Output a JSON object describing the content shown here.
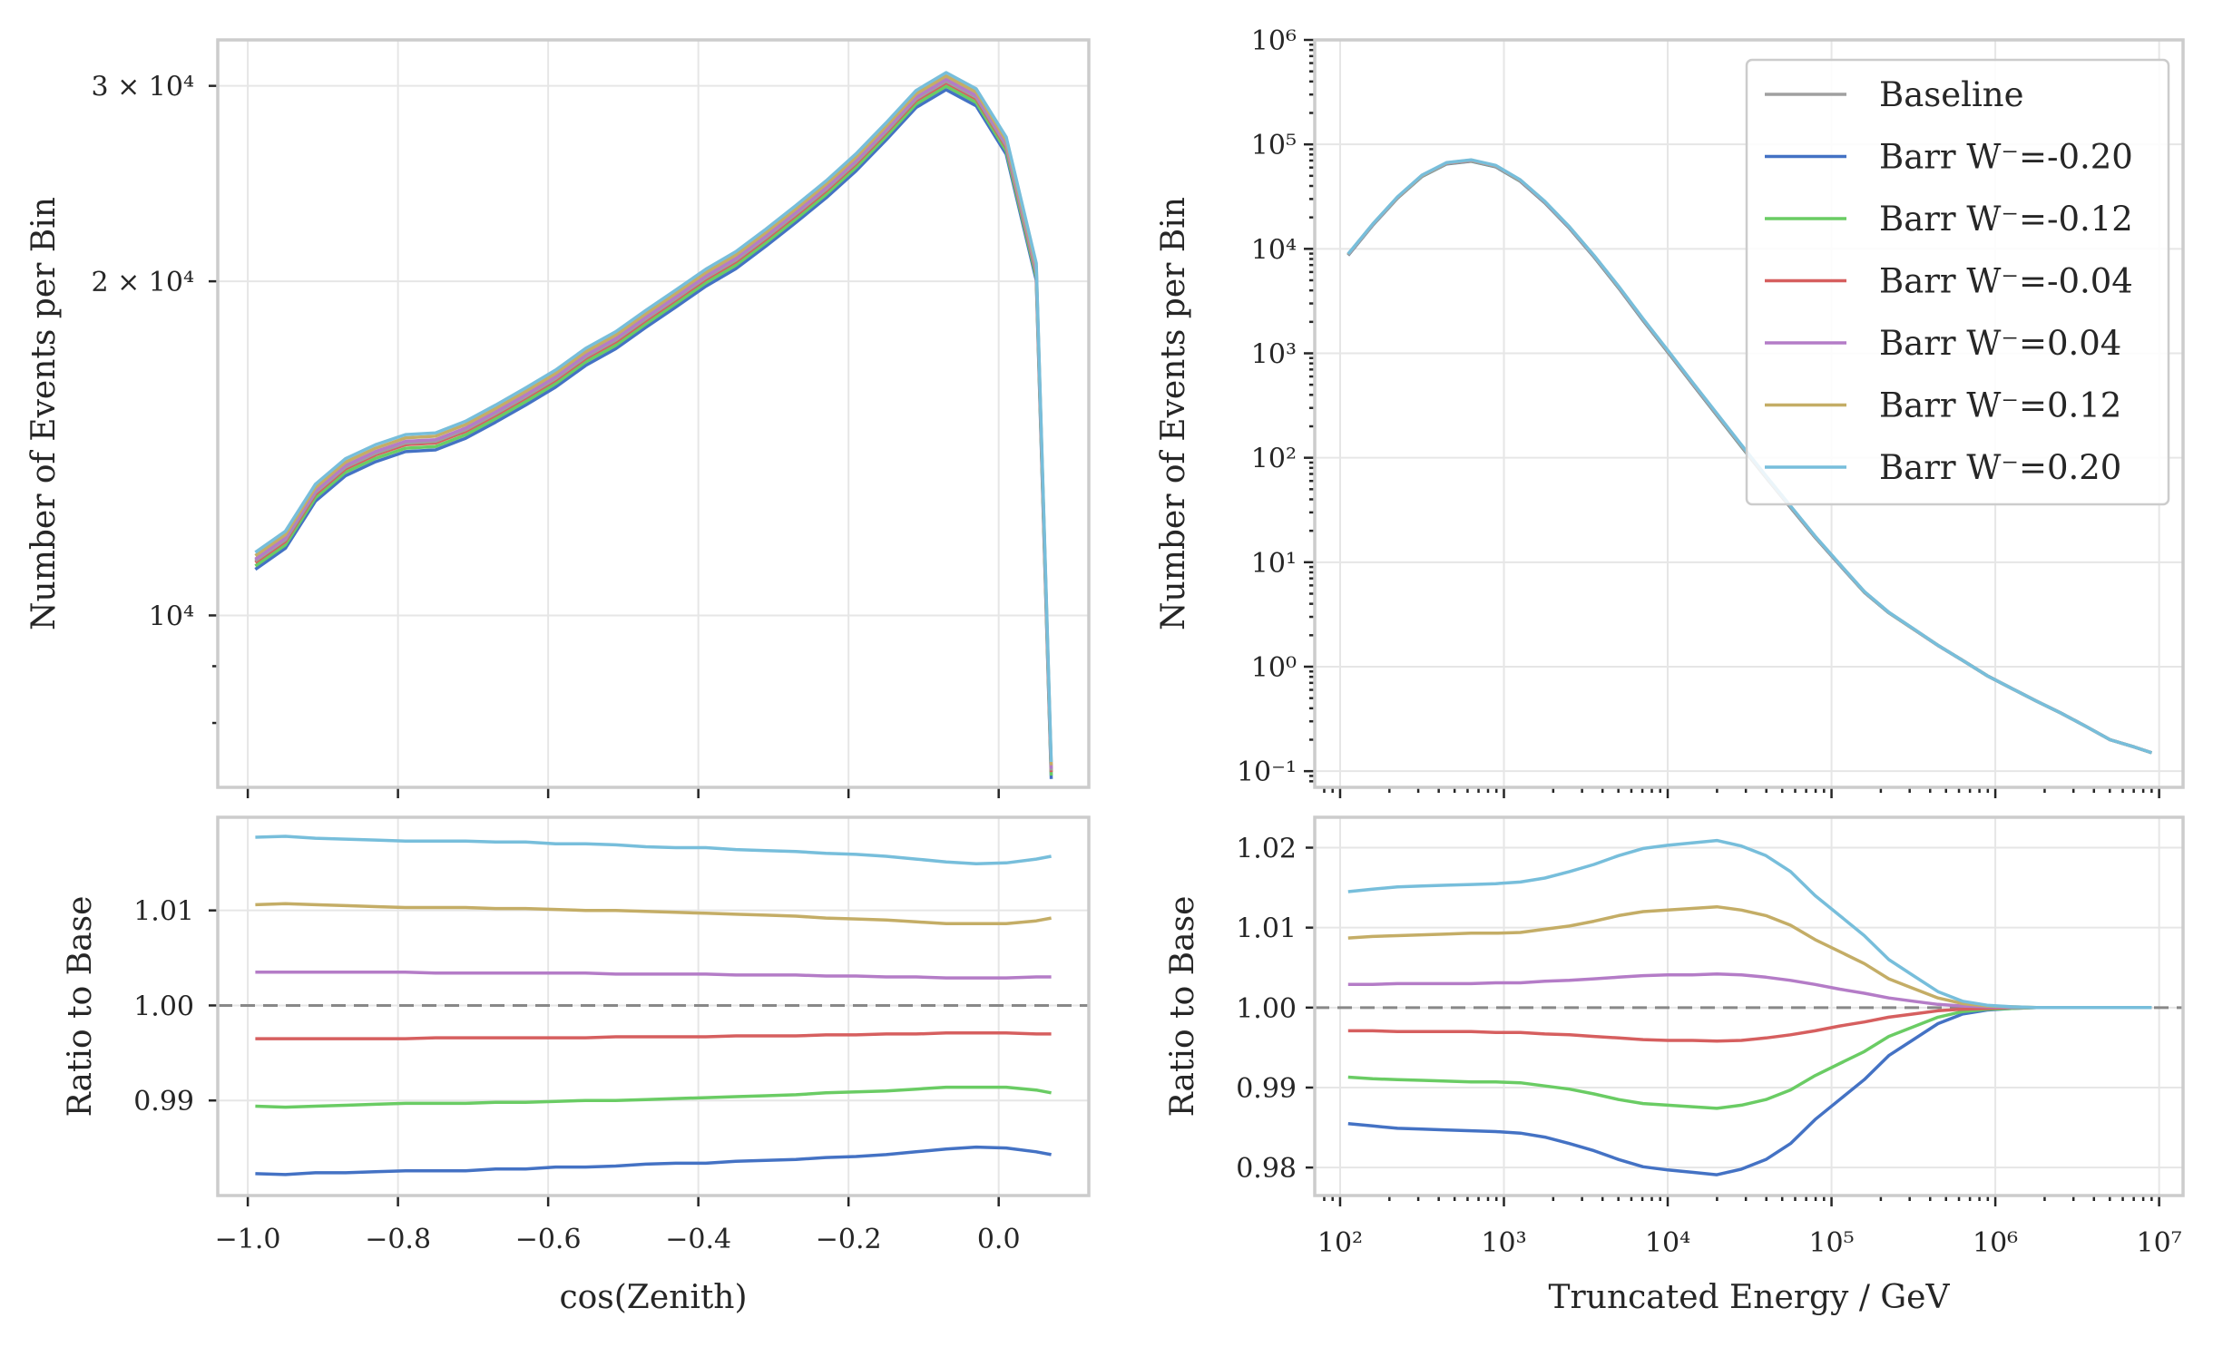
{
  "chart_data": [
    {
      "id": "zenith-main",
      "type": "line",
      "xlabel": "",
      "ylabel": "Number of Events per Bin",
      "yscale": "log",
      "xlim": [
        -1.04,
        0.12
      ],
      "ylim": [
        7000,
        33000
      ],
      "grid": true,
      "x": [
        -0.99,
        -0.95,
        -0.91,
        -0.87,
        -0.83,
        -0.79,
        -0.75,
        -0.71,
        -0.67,
        -0.63,
        -0.59,
        -0.55,
        -0.51,
        -0.47,
        -0.43,
        -0.39,
        -0.35,
        -0.31,
        -0.27,
        -0.23,
        -0.19,
        -0.15,
        -0.11,
        -0.07,
        -0.03,
        0.01,
        0.05,
        0.07
      ],
      "baseline": [
        11200,
        11700,
        12900,
        13600,
        14000,
        14300,
        14350,
        14700,
        15200,
        15750,
        16350,
        17100,
        17700,
        18500,
        19300,
        20150,
        20900,
        21900,
        23000,
        24200,
        25600,
        27300,
        29200,
        30300,
        29300,
        26500,
        20400,
        7250
      ],
      "major_ticks": [
        {
          "value": 10000,
          "label": "10⁴"
        },
        {
          "value": 20000,
          "label": "2 × 10⁴"
        },
        {
          "value": 30000,
          "label": "3 × 10⁴"
        }
      ],
      "minor_ticks": [
        8000,
        9000
      ],
      "x_ticks": [
        -1.0,
        -0.8,
        -0.6,
        -0.4,
        -0.2,
        0.0
      ]
    },
    {
      "id": "zenith-ratio",
      "type": "line",
      "xlabel": "cos(Zenith)",
      "ylabel": "Ratio to Base",
      "xlim": [
        -1.04,
        0.12
      ],
      "ylim": [
        0.98,
        1.0198
      ],
      "grid": true,
      "reference_line": 1.0,
      "x": [
        -0.99,
        -0.95,
        -0.91,
        -0.87,
        -0.83,
        -0.79,
        -0.75,
        -0.71,
        -0.67,
        -0.63,
        -0.59,
        -0.55,
        -0.51,
        -0.47,
        -0.43,
        -0.39,
        -0.35,
        -0.31,
        -0.27,
        -0.23,
        -0.19,
        -0.15,
        -0.11,
        -0.07,
        -0.03,
        0.01,
        0.05,
        0.07
      ],
      "series": [
        {
          "name": "Barr W⁻=-0.20",
          "values": [
            0.9823,
            0.9822,
            0.9824,
            0.9824,
            0.9825,
            0.9826,
            0.9826,
            0.9826,
            0.9828,
            0.9828,
            0.983,
            0.983,
            0.9831,
            0.9833,
            0.9834,
            0.9834,
            0.9836,
            0.9837,
            0.9838,
            0.984,
            0.9841,
            0.9843,
            0.9846,
            0.9849,
            0.9851,
            0.985,
            0.9846,
            0.9843
          ]
        },
        {
          "name": "Barr W⁻=-0.12",
          "values": [
            0.9894,
            0.9893,
            0.9894,
            0.9895,
            0.9896,
            0.9897,
            0.9897,
            0.9897,
            0.9898,
            0.9898,
            0.9899,
            0.99,
            0.99,
            0.9901,
            0.9902,
            0.9903,
            0.9904,
            0.9905,
            0.9906,
            0.9908,
            0.9909,
            0.991,
            0.9912,
            0.9914,
            0.9914,
            0.9914,
            0.9911,
            0.9908
          ]
        },
        {
          "name": "Barr W⁻=-0.04",
          "values": [
            0.9965,
            0.9965,
            0.9965,
            0.9965,
            0.9965,
            0.9965,
            0.9966,
            0.9966,
            0.9966,
            0.9966,
            0.9966,
            0.9966,
            0.9967,
            0.9967,
            0.9967,
            0.9967,
            0.9968,
            0.9968,
            0.9968,
            0.9969,
            0.9969,
            0.997,
            0.997,
            0.9971,
            0.9971,
            0.9971,
            0.997,
            0.997
          ]
        },
        {
          "name": "Barr W⁻=0.04",
          "values": [
            1.0035,
            1.0035,
            1.0035,
            1.0035,
            1.0035,
            1.0035,
            1.0034,
            1.0034,
            1.0034,
            1.0034,
            1.0034,
            1.0034,
            1.0033,
            1.0033,
            1.0033,
            1.0033,
            1.0032,
            1.0032,
            1.0032,
            1.0031,
            1.0031,
            1.003,
            1.003,
            1.0029,
            1.0029,
            1.0029,
            1.003,
            1.003
          ]
        },
        {
          "name": "Barr W⁻=0.12",
          "values": [
            1.0106,
            1.0107,
            1.0106,
            1.0105,
            1.0104,
            1.0103,
            1.0103,
            1.0103,
            1.0102,
            1.0102,
            1.0101,
            1.01,
            1.01,
            1.0099,
            1.0098,
            1.0097,
            1.0096,
            1.0095,
            1.0094,
            1.0092,
            1.0091,
            1.009,
            1.0088,
            1.0086,
            1.0086,
            1.0086,
            1.0089,
            1.0092
          ]
        },
        {
          "name": "Barr W⁻=0.20",
          "values": [
            1.0177,
            1.0178,
            1.0176,
            1.0175,
            1.0174,
            1.0173,
            1.0173,
            1.0173,
            1.0172,
            1.0172,
            1.017,
            1.017,
            1.0169,
            1.0167,
            1.0166,
            1.0166,
            1.0164,
            1.0163,
            1.0162,
            1.016,
            1.0159,
            1.0157,
            1.0154,
            1.0151,
            1.0149,
            1.015,
            1.0154,
            1.0157
          ]
        }
      ],
      "y_ticks": [
        {
          "value": 0.99,
          "label": "0.99"
        },
        {
          "value": 1.0,
          "label": "1.00"
        },
        {
          "value": 1.01,
          "label": "1.01"
        }
      ],
      "x_ticks": [
        {
          "value": -1.0,
          "label": "−1.0"
        },
        {
          "value": -0.8,
          "label": "−0.8"
        },
        {
          "value": -0.6,
          "label": "−0.6"
        },
        {
          "value": -0.4,
          "label": "−0.4"
        },
        {
          "value": -0.2,
          "label": "−0.2"
        },
        {
          "value": 0.0,
          "label": "0.0"
        }
      ]
    },
    {
      "id": "energy-main",
      "type": "line",
      "xlabel": "",
      "ylabel": "Number of Events per Bin",
      "xscale": "log",
      "yscale": "log",
      "xlim": [
        70,
        14000000
      ],
      "ylim": [
        0.07,
        1000000
      ],
      "grid": true,
      "x": [
        112,
        158,
        224,
        316,
        447,
        631,
        891,
        1259,
        1778,
        2512,
        3548,
        5012,
        7079,
        10000,
        14125,
        19953,
        28184,
        39811,
        56234,
        79433,
        112202,
        158489,
        223872,
        316228,
        446684,
        630957,
        891251,
        1258925,
        1778279,
        2511886,
        3548134,
        5011872,
        7079458,
        9000000
      ],
      "baseline": [
        8800,
        17000,
        31000,
        50000,
        66000,
        70000,
        62000,
        45000,
        28000,
        16000,
        8500,
        4300,
        2100,
        1050,
        520,
        260,
        130,
        66,
        34,
        17.5,
        9.5,
        5.2,
        3.3,
        2.3,
        1.6,
        1.15,
        0.82,
        0.62,
        0.47,
        0.36,
        0.27,
        0.2,
        0.17,
        0.15
      ],
      "y_ticks": [
        {
          "value": 0.1,
          "label": "10⁻¹"
        },
        {
          "value": 1,
          "label": "10⁰"
        },
        {
          "value": 10,
          "label": "10¹"
        },
        {
          "value": 100,
          "label": "10²"
        },
        {
          "value": 1000,
          "label": "10³"
        },
        {
          "value": 10000,
          "label": "10⁴"
        },
        {
          "value": 100000,
          "label": "10⁵"
        },
        {
          "value": 1000000,
          "label": "10⁶"
        }
      ],
      "x_ticks": [
        100,
        1000,
        10000,
        100000,
        1000000,
        10000000
      ],
      "legend_position": "top-right"
    },
    {
      "id": "energy-ratio",
      "type": "line",
      "xlabel": "Truncated Energy / GeV",
      "ylabel": "Ratio to Base",
      "xscale": "log",
      "xlim": [
        70,
        14000000
      ],
      "ylim": [
        0.9765,
        1.0238
      ],
      "grid": true,
      "reference_line": 1.0,
      "x": [
        112,
        158,
        224,
        316,
        447,
        631,
        891,
        1259,
        1778,
        2512,
        3548,
        5012,
        7079,
        10000,
        14125,
        19953,
        28184,
        39811,
        56234,
        79433,
        112202,
        158489,
        223872,
        316228,
        446684,
        630957,
        891251,
        1258925,
        1778279,
        2511886,
        3548134,
        5011872,
        7079458,
        9000000
      ],
      "series": [
        {
          "name": "Barr W⁻=-0.20",
          "values": [
            0.9855,
            0.9852,
            0.9849,
            0.9848,
            0.9847,
            0.9846,
            0.9845,
            0.9843,
            0.9838,
            0.983,
            0.9821,
            0.981,
            0.9801,
            0.9797,
            0.9794,
            0.9791,
            0.9798,
            0.981,
            0.983,
            0.986,
            0.9885,
            0.991,
            0.994,
            0.996,
            0.998,
            0.9992,
            0.9997,
            0.9999,
            1.0,
            1.0,
            1.0,
            1.0,
            1.0,
            1.0
          ]
        },
        {
          "name": "Barr W⁻=-0.12",
          "values": [
            0.9913,
            0.9911,
            0.991,
            0.9909,
            0.9908,
            0.9907,
            0.9907,
            0.9906,
            0.9902,
            0.9898,
            0.9892,
            0.9885,
            0.988,
            0.9878,
            0.9876,
            0.9874,
            0.9878,
            0.9885,
            0.9897,
            0.9915,
            0.993,
            0.9945,
            0.9964,
            0.9976,
            0.9988,
            0.9995,
            0.9998,
            0.9999,
            1.0,
            1.0,
            1.0,
            1.0,
            1.0,
            1.0
          ]
        },
        {
          "name": "Barr W⁻=-0.04",
          "values": [
            0.9971,
            0.9971,
            0.997,
            0.997,
            0.997,
            0.997,
            0.9969,
            0.9969,
            0.9967,
            0.9966,
            0.9964,
            0.9962,
            0.996,
            0.9959,
            0.9959,
            0.9958,
            0.9959,
            0.9962,
            0.9966,
            0.9971,
            0.9977,
            0.9982,
            0.9988,
            0.9992,
            0.9996,
            0.9998,
            0.9999,
            1.0,
            1.0,
            1.0,
            1.0,
            1.0,
            1.0,
            1.0
          ]
        },
        {
          "name": "Barr W⁻=0.04",
          "values": [
            1.0029,
            1.0029,
            1.003,
            1.003,
            1.003,
            1.003,
            1.0031,
            1.0031,
            1.0033,
            1.0034,
            1.0036,
            1.0038,
            1.004,
            1.0041,
            1.0041,
            1.0042,
            1.0041,
            1.0038,
            1.0034,
            1.0029,
            1.0023,
            1.0018,
            1.0012,
            1.0008,
            1.0004,
            1.0002,
            1.0001,
            1.0,
            1.0,
            1.0,
            1.0,
            1.0,
            1.0,
            1.0
          ]
        },
        {
          "name": "Barr W⁻=0.12",
          "values": [
            1.0087,
            1.0089,
            1.009,
            1.0091,
            1.0092,
            1.0093,
            1.0093,
            1.0094,
            1.0098,
            1.0102,
            1.0108,
            1.0115,
            1.012,
            1.0122,
            1.0124,
            1.0126,
            1.0122,
            1.0115,
            1.0103,
            1.0085,
            1.007,
            1.0055,
            1.0036,
            1.0024,
            1.0012,
            1.0005,
            1.0002,
            1.0001,
            1.0,
            1.0,
            1.0,
            1.0,
            1.0,
            1.0
          ]
        },
        {
          "name": "Barr W⁻=0.20",
          "values": [
            1.0145,
            1.0148,
            1.0151,
            1.0152,
            1.0153,
            1.0154,
            1.0155,
            1.0157,
            1.0162,
            1.017,
            1.0179,
            1.019,
            1.0199,
            1.0203,
            1.0206,
            1.0209,
            1.0202,
            1.019,
            1.017,
            1.014,
            1.0115,
            1.009,
            1.006,
            1.004,
            1.002,
            1.0008,
            1.0003,
            1.0001,
            1.0,
            1.0,
            1.0,
            1.0,
            1.0,
            1.0
          ]
        }
      ],
      "y_ticks": [
        {
          "value": 0.98,
          "label": "0.98"
        },
        {
          "value": 0.99,
          "label": "0.99"
        },
        {
          "value": 1.0,
          "label": "1.00"
        },
        {
          "value": 1.01,
          "label": "1.01"
        },
        {
          "value": 1.02,
          "label": "1.02"
        }
      ],
      "x_ticks": [
        100,
        1000,
        10000,
        100000,
        1000000,
        10000000
      ]
    }
  ],
  "legend": {
    "entries": [
      {
        "label": "Baseline",
        "color": "#a0a0a0"
      },
      {
        "label": "Barr W⁻=-0.20",
        "color": "#4472c4"
      },
      {
        "label": "Barr W⁻=-0.12",
        "color": "#6acc64"
      },
      {
        "label": "Barr W⁻=-0.04",
        "color": "#d65f5f"
      },
      {
        "label": "Barr W⁻=0.04",
        "color": "#b47cc7"
      },
      {
        "label": "Barr W⁻=0.12",
        "color": "#c4ad66"
      },
      {
        "label": "Barr W⁻=0.20",
        "color": "#77bedb"
      }
    ]
  },
  "colors": {
    "frame": "#cccccc",
    "grid": "#e6e6e6",
    "reference_line": "#888888",
    "text": "#262626"
  }
}
